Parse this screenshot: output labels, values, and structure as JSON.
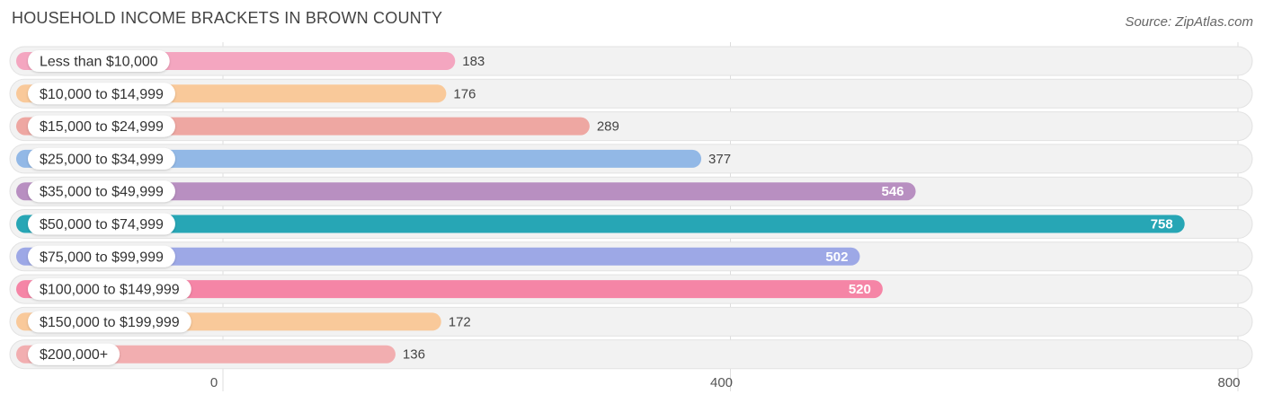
{
  "header": {
    "title": "HOUSEHOLD INCOME BRACKETS IN BROWN COUNTY",
    "source": "Source: ZipAtlas.com"
  },
  "chart_data": {
    "type": "bar",
    "orientation": "horizontal",
    "title": "HOUSEHOLD INCOME BRACKETS IN BROWN COUNTY",
    "categories": [
      "Less than $10,000",
      "$10,000 to $14,999",
      "$15,000 to $24,999",
      "$25,000 to $34,999",
      "$35,000 to $49,999",
      "$50,000 to $74,999",
      "$75,000 to $99,999",
      "$100,000 to $149,999",
      "$150,000 to $199,999",
      "$200,000+"
    ],
    "values": [
      183,
      176,
      289,
      377,
      546,
      758,
      502,
      520,
      172,
      136
    ],
    "colors": [
      "#f4a6c0",
      "#f9c99a",
      "#eea7a2",
      "#92b8e6",
      "#b88fc1",
      "#27a6b5",
      "#9da8e6",
      "#f585a6",
      "#f9c99a",
      "#f2aeb0"
    ],
    "highlight_index": 5,
    "xticks": [
      "0",
      "400",
      "800"
    ],
    "xlim": [
      0,
      800
    ],
    "grid": true,
    "legend": "none"
  }
}
